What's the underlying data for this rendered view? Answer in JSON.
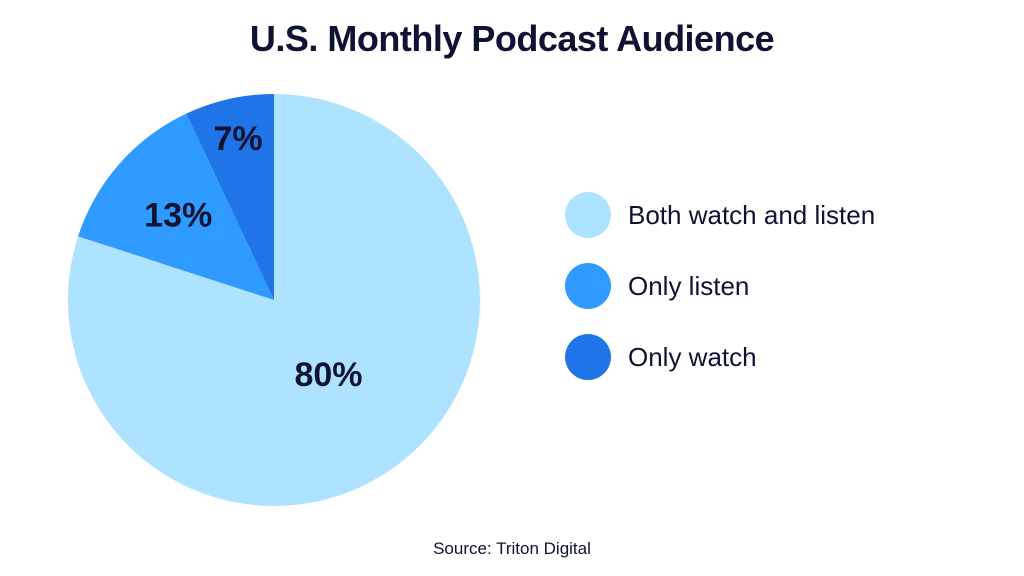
{
  "chart_data": {
    "type": "pie",
    "title": "U.S. Monthly Podcast Audience",
    "source": "Source: Triton Digital",
    "legend_position": "right",
    "slices": [
      {
        "label": "Both watch and listen",
        "value": 80,
        "value_label": "80%",
        "color": "#ade3ff"
      },
      {
        "label": "Only listen",
        "value": 13,
        "value_label": "13%",
        "color": "#2f9aff"
      },
      {
        "label": "Only watch",
        "value": 7,
        "value_label": "7%",
        "color": "#1f74e8"
      }
    ]
  }
}
